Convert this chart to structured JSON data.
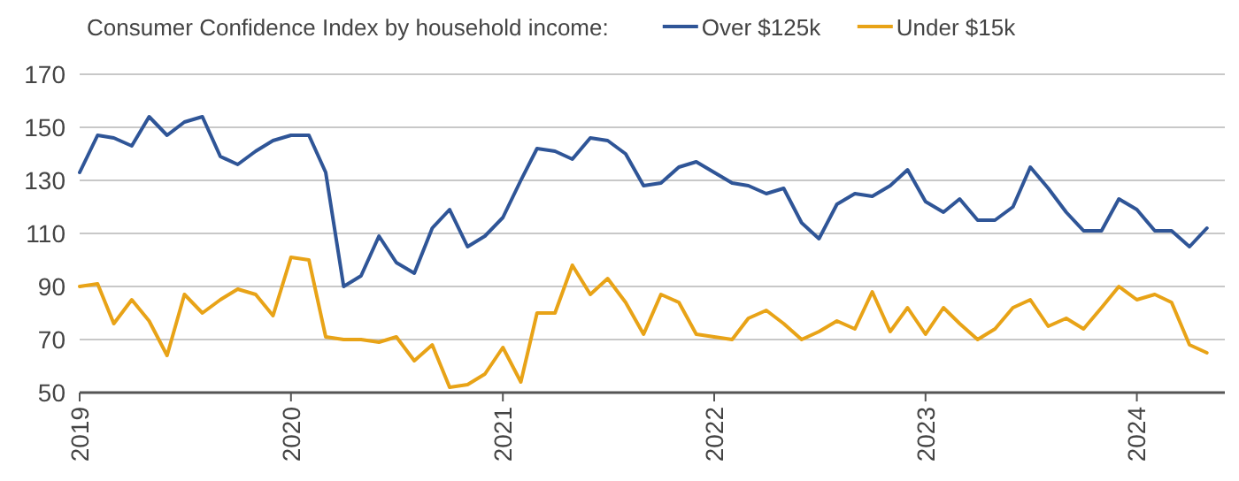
{
  "chart_data": {
    "type": "line",
    "title": "Consumer Confidence Index by household income:",
    "x": [
      "2019-01",
      "2019-02",
      "2019-03",
      "2019-04",
      "2019-05",
      "2019-06",
      "2019-07",
      "2019-08",
      "2019-09",
      "2019-10",
      "2019-11",
      "2019-12",
      "2020-01",
      "2020-02",
      "2020-03",
      "2020-04",
      "2020-05",
      "2020-06",
      "2020-07",
      "2020-08",
      "2020-09",
      "2020-10",
      "2020-11",
      "2020-12",
      "2021-01",
      "2021-02",
      "2021-03",
      "2021-04",
      "2021-05",
      "2021-06",
      "2021-07",
      "2021-08",
      "2021-09",
      "2021-10",
      "2021-11",
      "2021-12",
      "2022-01",
      "2022-02",
      "2022-03",
      "2022-04",
      "2022-05",
      "2022-06",
      "2022-07",
      "2022-08",
      "2022-09",
      "2022-10",
      "2022-11",
      "2022-12",
      "2023-01",
      "2023-02",
      "2023-03",
      "2023-04",
      "2023-05",
      "2023-06",
      "2023-07",
      "2023-08",
      "2023-09",
      "2023-10",
      "2023-11",
      "2023-12",
      "2024-01",
      "2024-02",
      "2024-03",
      "2024-04",
      "2024-05"
    ],
    "series": [
      {
        "name": "Over $125k",
        "color": "#2f5597",
        "values": [
          133,
          147,
          146,
          143,
          154,
          147,
          152,
          154,
          139,
          136,
          141,
          145,
          147,
          147,
          133,
          90,
          94,
          109,
          99,
          95,
          112,
          119,
          105,
          109,
          116,
          130,
          142,
          141,
          138,
          146,
          145,
          140,
          128,
          129,
          135,
          137,
          133,
          129,
          128,
          125,
          127,
          114,
          108,
          121,
          125,
          124,
          128,
          134,
          122,
          118,
          123,
          115,
          115,
          120,
          135,
          127,
          118,
          111,
          111,
          123,
          119,
          111,
          111,
          105,
          112
        ]
      },
      {
        "name": "Under $15k",
        "color": "#e8a317",
        "values": [
          90,
          91,
          76,
          85,
          77,
          64,
          87,
          80,
          85,
          89,
          87,
          79,
          101,
          100,
          71,
          70,
          70,
          69,
          71,
          62,
          68,
          52,
          53,
          57,
          67,
          54,
          80,
          80,
          98,
          87,
          93,
          84,
          72,
          87,
          84,
          72,
          71,
          70,
          78,
          81,
          76,
          70,
          73,
          77,
          74,
          88,
          73,
          82,
          72,
          82,
          76,
          70,
          74,
          82,
          85,
          75,
          78,
          74,
          82,
          90,
          85,
          87,
          84,
          68,
          65
        ]
      }
    ],
    "xlim": [
      "2019-01",
      "2024-06"
    ],
    "xticks": [
      {
        "value": "2019-01",
        "label": "2019"
      },
      {
        "value": "2020-01",
        "label": "2020"
      },
      {
        "value": "2021-01",
        "label": "2021"
      },
      {
        "value": "2022-01",
        "label": "2022"
      },
      {
        "value": "2023-01",
        "label": "2023"
      },
      {
        "value": "2024-01",
        "label": "2024"
      }
    ],
    "ylim": [
      50,
      170
    ],
    "yticks": [
      50,
      70,
      90,
      110,
      130,
      150,
      170
    ],
    "grid": "y",
    "legend": "top",
    "marker": "none",
    "line_style": "solid"
  }
}
